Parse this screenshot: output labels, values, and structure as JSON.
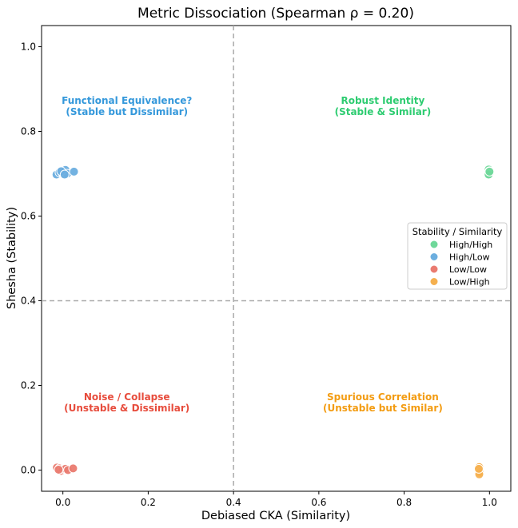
{
  "chart_data": {
    "type": "scatter",
    "title": "Metric Dissociation (Spearman ρ = 0.20)",
    "xlabel": "Debiased CKA (Similarity)",
    "ylabel": "Shesha (Stability)",
    "xlim": [
      -0.05,
      1.05
    ],
    "ylim": [
      -0.05,
      1.05
    ],
    "xticks": [
      "0.0",
      "0.2",
      "0.4",
      "0.6",
      "0.8",
      "1.0"
    ],
    "yticks": [
      "0.0",
      "0.2",
      "0.4",
      "0.6",
      "0.8",
      "1.0"
    ],
    "thresholds": {
      "x": 0.4,
      "y": 0.4
    },
    "grid": false,
    "legend": {
      "title": "Stability / Similarity",
      "placement": "center-right"
    },
    "quadrant_labels": [
      {
        "line1": "Functional Equivalence?",
        "line2": "(Stable but Dissimilar)",
        "x": 0.15,
        "y": 0.85,
        "color": "#3498db"
      },
      {
        "line1": "Robust Identity",
        "line2": "(Stable & Similar)",
        "x": 0.75,
        "y": 0.85,
        "color": "#2ecc71"
      },
      {
        "line1": "Noise / Collapse",
        "line2": "(Unstable & Dissimilar)",
        "x": 0.15,
        "y": 0.15,
        "color": "#e74c3c"
      },
      {
        "line1": "Spurious Correlation",
        "line2": "(Unstable but Similar)",
        "x": 0.75,
        "y": 0.15,
        "color": "#f39c12"
      }
    ],
    "series": [
      {
        "name": "High/High",
        "color": "#6fd89a",
        "points": [
          [
            0.998,
            0.71
          ],
          [
            1.0,
            0.706
          ],
          [
            0.999,
            0.703
          ],
          [
            1.0,
            0.7
          ],
          [
            0.998,
            0.698
          ],
          [
            1.0,
            0.705
          ]
        ]
      },
      {
        "name": "High/Low",
        "color": "#6caedf",
        "points": [
          [
            -0.015,
            0.698
          ],
          [
            -0.008,
            0.703
          ],
          [
            0.0,
            0.701
          ],
          [
            0.006,
            0.709
          ],
          [
            0.01,
            0.7
          ],
          [
            0.026,
            0.705
          ],
          [
            -0.004,
            0.706
          ],
          [
            0.004,
            0.698
          ]
        ]
      },
      {
        "name": "Low/Low",
        "color": "#ea7b70",
        "points": [
          [
            -0.014,
            0.006
          ],
          [
            -0.008,
            0.004
          ],
          [
            -0.004,
            -0.002
          ],
          [
            0.0,
            0.002
          ],
          [
            0.006,
            0.003
          ],
          [
            0.012,
            0.0
          ],
          [
            0.024,
            0.004
          ],
          [
            -0.01,
            0.001
          ]
        ]
      },
      {
        "name": "Low/High",
        "color": "#f5b04f",
        "points": [
          [
            0.976,
            0.007
          ],
          [
            0.975,
            0.0
          ],
          [
            0.977,
            -0.005
          ],
          [
            0.976,
            -0.01
          ],
          [
            0.975,
            0.003
          ]
        ]
      }
    ]
  }
}
